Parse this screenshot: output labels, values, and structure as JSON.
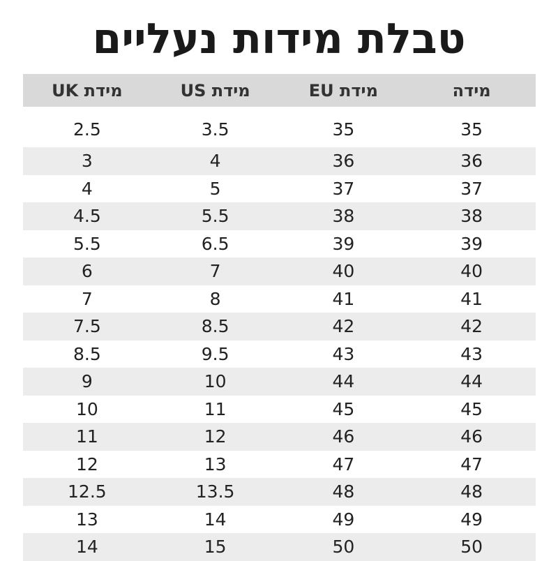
{
  "header": {
    "title": "טבלת מידות נעליים"
  },
  "table": {
    "columns": [
      "מידה",
      "מידת EU",
      "מידת US",
      "מידת UK"
    ],
    "rows": [
      [
        35,
        35,
        3.5,
        2.5
      ],
      [
        36,
        36,
        4,
        3
      ],
      [
        37,
        37,
        5,
        4
      ],
      [
        38,
        38,
        5.5,
        4.5
      ],
      [
        39,
        39,
        6.5,
        5.5
      ],
      [
        40,
        40,
        7,
        6
      ],
      [
        41,
        41,
        8,
        7
      ],
      [
        42,
        42,
        8.5,
        7.5
      ],
      [
        43,
        43,
        9.5,
        8.5
      ],
      [
        44,
        44,
        10,
        9
      ],
      [
        45,
        45,
        11,
        10
      ],
      [
        46,
        46,
        12,
        11
      ],
      [
        47,
        47,
        13,
        12
      ],
      [
        48,
        48,
        13.5,
        12.5
      ],
      [
        49,
        49,
        14,
        13
      ],
      [
        50,
        50,
        15,
        14
      ]
    ]
  }
}
